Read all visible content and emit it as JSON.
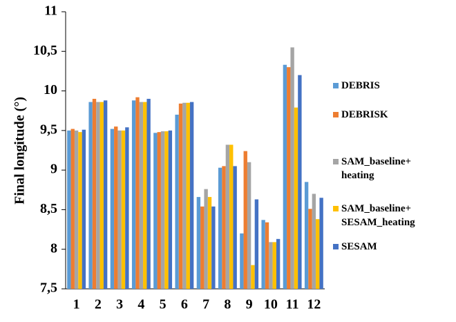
{
  "chart_data": {
    "type": "bar",
    "y_label": "Final longitude (°)",
    "categories": [
      "1",
      "2",
      "3",
      "4",
      "5",
      "6",
      "7",
      "8",
      "9",
      "10",
      "11",
      "12"
    ],
    "series": [
      {
        "name": "DEBRIS",
        "color": "#5b9bd5",
        "values": [
          9.5,
          9.86,
          9.52,
          9.88,
          9.47,
          9.7,
          8.66,
          9.03,
          8.2,
          8.37,
          10.33,
          8.85
        ]
      },
      {
        "name": "DEBRISK",
        "color": "#ed7d31",
        "values": [
          9.52,
          9.9,
          9.55,
          9.92,
          9.48,
          9.84,
          8.54,
          9.05,
          9.24,
          8.34,
          10.3,
          8.51
        ]
      },
      {
        "name": "SAM_baseline+ heating",
        "color": "#a5a5a5",
        "values": [
          9.5,
          9.86,
          9.5,
          9.86,
          9.49,
          9.85,
          8.76,
          9.32,
          9.1,
          8.09,
          10.55,
          8.7
        ]
      },
      {
        "name": "SAM_baseline+ SESAM_heating",
        "color": "#ffc000",
        "values": [
          9.48,
          9.86,
          9.5,
          9.86,
          9.49,
          9.85,
          8.66,
          9.32,
          7.8,
          8.09,
          9.79,
          8.38
        ]
      },
      {
        "name": "SESAM",
        "color": "#4472c4",
        "values": [
          9.51,
          9.88,
          9.54,
          9.9,
          9.5,
          9.86,
          8.54,
          9.05,
          8.63,
          8.13,
          10.2,
          8.65
        ]
      }
    ],
    "ylim": [
      7.5,
      11
    ],
    "yticks": [
      {
        "value": 7.5,
        "label": "7,5"
      },
      8,
      {
        "value": 8.5,
        "label": "8,5"
      },
      9,
      {
        "value": 9.5,
        "label": "9,5"
      },
      10,
      {
        "value": 10.5,
        "label": "10,5"
      },
      11
    ],
    "grid": false
  }
}
